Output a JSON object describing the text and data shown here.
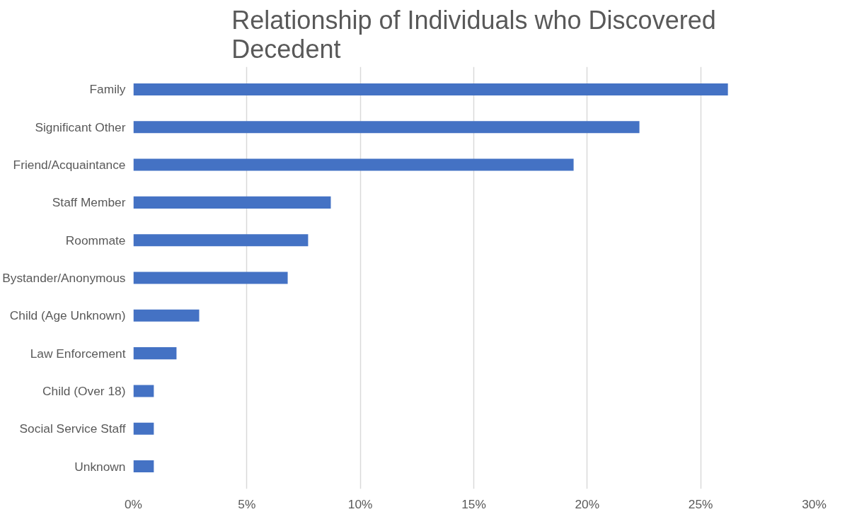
{
  "chart_data": {
    "type": "bar",
    "orientation": "horizontal",
    "title": "Relationship of Individuals who Discovered Decedent",
    "categories": [
      "Family",
      "Significant Other",
      "Friend/Acquaintance",
      "Staff Member",
      "Roommate",
      "Bystander/Anonymous",
      "Child (Age Unknown)",
      "Law Enforcement",
      "Child (Over 18)",
      "Social Service Staff",
      "Unknown"
    ],
    "values": [
      26.2,
      22.3,
      19.4,
      8.7,
      7.7,
      6.8,
      2.9,
      1.9,
      0.9,
      0.9,
      0.9
    ],
    "color": "#4472c4",
    "xlim": [
      0,
      30
    ],
    "xticks": [
      {
        "value": 0,
        "label": "0%"
      },
      {
        "value": 5,
        "label": "5%"
      },
      {
        "value": 10,
        "label": "10%"
      },
      {
        "value": 15,
        "label": "15%"
      },
      {
        "value": 20,
        "label": "20%"
      },
      {
        "value": 25,
        "label": "25%"
      },
      {
        "value": 30,
        "label": "30%"
      }
    ],
    "grid": "x"
  }
}
